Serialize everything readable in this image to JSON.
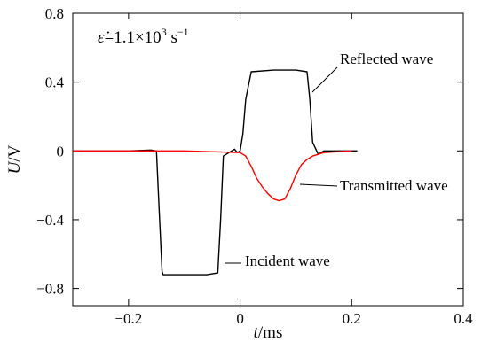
{
  "chart_data": {
    "type": "line",
    "annotation": {
      "symbol": "ε̇",
      "equals": "=1.1×10",
      "exponent": "3",
      "unit_base": " s",
      "unit_exponent": "−1"
    },
    "xlabel": {
      "var": "t",
      "unit": "/ms"
    },
    "ylabel": {
      "var": "U",
      "unit": "/V"
    },
    "xlim": [
      -0.3,
      0.4
    ],
    "ylim": [
      -0.9,
      0.8
    ],
    "xticks": [
      -0.2,
      0,
      0.2,
      0.4
    ],
    "xtick_labels": [
      "−0.2",
      "0",
      "0.2",
      "0.4"
    ],
    "yticks": [
      -0.8,
      -0.4,
      0,
      0.4,
      0.8
    ],
    "ytick_labels": [
      "−0.8",
      "−0.4",
      "0",
      "0.4",
      "0.8"
    ],
    "grid": false,
    "series": [
      {
        "name": "Incident wave / Reflected wave",
        "color": "#000000",
        "x": [
          -0.3,
          -0.2,
          -0.16,
          -0.15,
          -0.145,
          -0.14,
          -0.138,
          -0.1,
          -0.06,
          -0.04,
          -0.035,
          -0.03,
          -0.01,
          -0.005,
          0,
          0.005,
          0.01,
          0.02,
          0.06,
          0.1,
          0.12,
          0.125,
          0.13,
          0.14,
          0.15,
          0.2,
          0.21
        ],
        "y": [
          0,
          0,
          0.005,
          0.0,
          -0.35,
          -0.7,
          -0.72,
          -0.72,
          -0.72,
          -0.71,
          -0.4,
          -0.03,
          0.01,
          -0.01,
          0.0,
          0.1,
          0.3,
          0.46,
          0.47,
          0.47,
          0.46,
          0.3,
          0.05,
          -0.02,
          0.0,
          0.0,
          0.0
        ]
      },
      {
        "name": "Transmitted wave",
        "color": "#ff0000",
        "x": [
          -0.3,
          -0.2,
          -0.1,
          0.0,
          0.01,
          0.02,
          0.03,
          0.04,
          0.05,
          0.06,
          0.07,
          0.08,
          0.09,
          0.1,
          0.11,
          0.12,
          0.13,
          0.15,
          0.2
        ],
        "y": [
          0,
          0.0,
          0.0,
          -0.01,
          -0.03,
          -0.09,
          -0.16,
          -0.21,
          -0.25,
          -0.28,
          -0.29,
          -0.28,
          -0.22,
          -0.14,
          -0.08,
          -0.05,
          -0.03,
          -0.01,
          0.0
        ]
      }
    ],
    "annotations": [
      {
        "text": "Reflected wave",
        "x": 0.09,
        "y": 0.37
      },
      {
        "text": "Transmitted wave",
        "x": 0.1,
        "y": -0.22
      },
      {
        "text": "Incident wave",
        "x": -0.03,
        "y": -0.67
      }
    ]
  }
}
